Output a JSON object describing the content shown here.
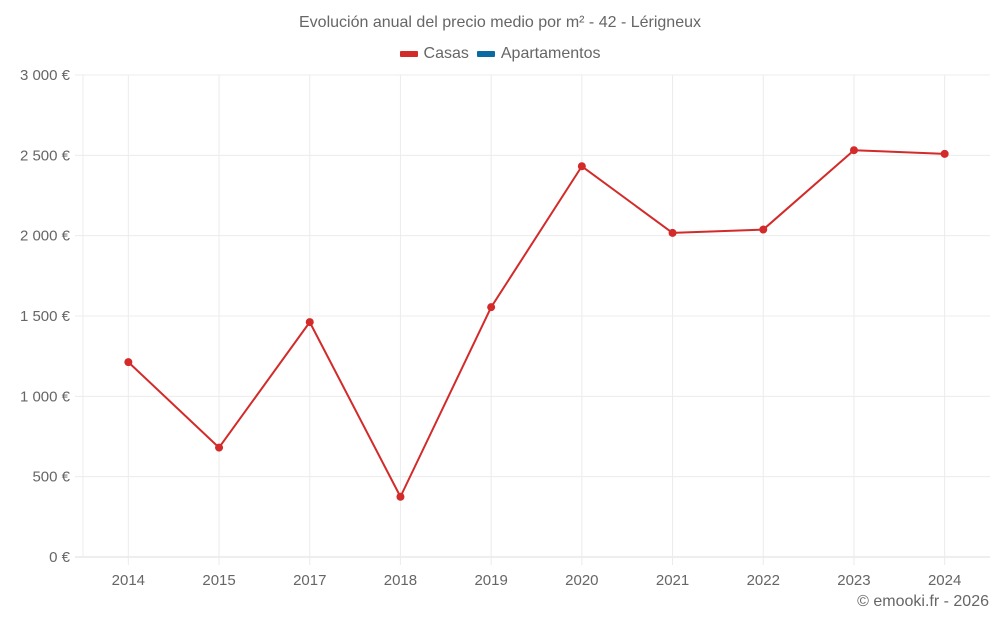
{
  "chart_data": {
    "type": "line",
    "title": "Evolución anual del precio medio por m² - 42 - Lérigneux",
    "categories": [
      "2014",
      "2015",
      "2017",
      "2018",
      "2019",
      "2020",
      "2021",
      "2022",
      "2023",
      "2024"
    ],
    "series": [
      {
        "name": "Casas",
        "color": "#d32a2a",
        "values": [
          1213,
          681,
          1462,
          375,
          1555,
          2432,
          2017,
          2038,
          2532,
          2509
        ]
      },
      {
        "name": "Apartamentos",
        "color": "#0a6aa1",
        "values": []
      }
    ],
    "xlabel": "",
    "ylabel": "",
    "ylim": [
      0,
      3000
    ],
    "yticks": [
      "0 €",
      "500 €",
      "1 000 €",
      "1 500 €",
      "2 000 €",
      "2 500 €",
      "3 000 €"
    ],
    "grid": true,
    "legend_position": "top"
  },
  "header": {
    "title": "Evolución anual del precio medio por m² - 42 - Lérigneux"
  },
  "legend": {
    "items": [
      {
        "label": "Casas",
        "color": "#d32a2a"
      },
      {
        "label": "Apartamentos",
        "color": "#0a6aa1"
      }
    ]
  },
  "footer": {
    "credit": "© emooki.fr - 2026"
  }
}
